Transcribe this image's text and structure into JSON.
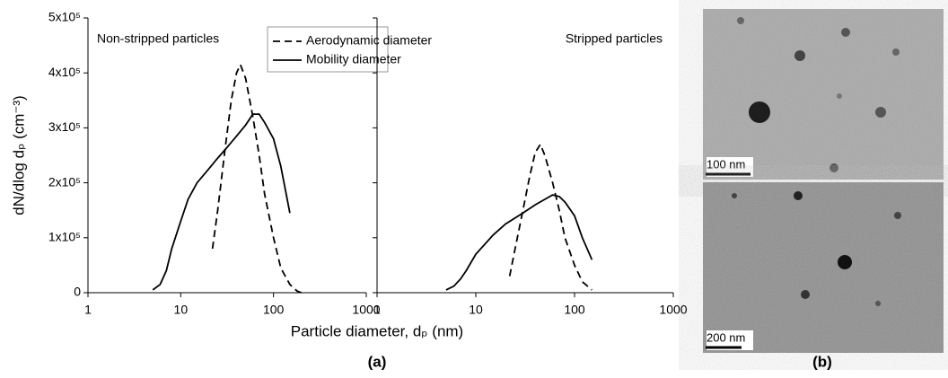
{
  "chart_data": [
    {
      "type": "line",
      "title": "Non-stripped particles",
      "xlabel": "Particle diameter, dₚ (nm)",
      "ylabel": "dN/dlog dₚ (cm⁻³)",
      "xlog": true,
      "xlim": [
        1,
        1000
      ],
      "xticks": [
        1,
        10,
        100,
        1000
      ],
      "ylim": [
        0,
        500000
      ],
      "yticks": [
        0,
        {
          "value": 100000,
          "label": "1x10⁵"
        },
        {
          "value": 200000,
          "label": "2x10⁵"
        },
        {
          "value": 300000,
          "label": "3x10⁵"
        },
        {
          "value": 400000,
          "label": "4x10⁵"
        },
        {
          "value": 500000,
          "label": "5x10⁵"
        }
      ],
      "legend": "top-center",
      "series": [
        {
          "name": "Aerodynamic diameter",
          "color": "#000000",
          "style": "dashed",
          "x": [
            22,
            25,
            30,
            35,
            40,
            44,
            50,
            60,
            70,
            80,
            100,
            120,
            150,
            180,
            200
          ],
          "values": [
            80000,
            150000,
            260000,
            350000,
            400000,
            415000,
            390000,
            320000,
            250000,
            180000,
            100000,
            45000,
            15000,
            3000,
            0
          ]
        },
        {
          "name": "Mobility diameter",
          "color": "#000000",
          "style": "solid",
          "x": [
            5,
            6,
            7,
            8,
            10,
            12,
            15,
            20,
            25,
            30,
            40,
            50,
            60,
            70,
            80,
            100,
            120,
            150
          ],
          "values": [
            5000,
            15000,
            40000,
            80000,
            130000,
            170000,
            200000,
            225000,
            245000,
            260000,
            285000,
            305000,
            325000,
            325000,
            310000,
            280000,
            230000,
            145000
          ]
        }
      ]
    },
    {
      "type": "line",
      "title": "Stripped particles",
      "xlog": true,
      "xlim": [
        1,
        1000
      ],
      "xticks": [
        1,
        10,
        100,
        1000
      ],
      "ylim": [
        0,
        500000
      ],
      "yticks": [
        0,
        100000,
        200000,
        300000,
        400000,
        500000
      ],
      "series": [
        {
          "color": "#000000",
          "style": "dashed",
          "x": [
            22,
            25,
            30,
            35,
            40,
            45,
            50,
            60,
            70,
            80,
            100,
            120,
            150
          ],
          "values": [
            30000,
            80000,
            150000,
            210000,
            255000,
            270000,
            250000,
            200000,
            150000,
            100000,
            50000,
            20000,
            5000
          ]
        },
        {
          "color": "#000000",
          "style": "solid",
          "x": [
            5,
            6,
            7,
            8,
            10,
            15,
            20,
            30,
            40,
            50,
            60,
            70,
            80,
            100,
            120,
            150
          ],
          "values": [
            5000,
            12000,
            25000,
            40000,
            70000,
            105000,
            125000,
            145000,
            160000,
            170000,
            178000,
            175000,
            165000,
            140000,
            100000,
            60000
          ]
        }
      ]
    }
  ],
  "figure": {
    "label_a": "(a)",
    "label_b": "(b)",
    "micrographs": [
      {
        "scale_bar": "100 nm"
      },
      {
        "scale_bar": "200 nm"
      }
    ]
  }
}
